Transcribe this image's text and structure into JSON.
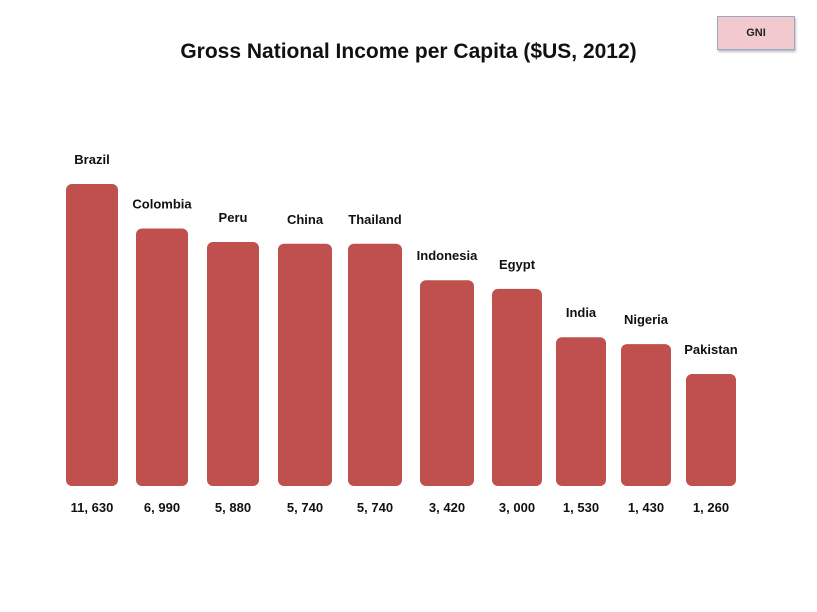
{
  "badge": {
    "label": "GNI"
  },
  "colors": {
    "bar": "#c0504d",
    "badge_bg": "#f2c9cc"
  },
  "chart_data": {
    "type": "bar",
    "title": "Gross National Income per Capita ($US, 2012)",
    "xlabel": "",
    "ylabel": "",
    "grid": false,
    "categories": [
      "Brazil",
      "Colombia",
      "Peru",
      "China",
      "Thailand",
      "Indonesia",
      "Egypt",
      "India",
      "Nigeria",
      "Pakistan"
    ],
    "values": [
      11630,
      6990,
      5880,
      5740,
      5740,
      3420,
      3000,
      1530,
      1430,
      1260
    ],
    "value_labels": [
      "11, 630",
      "6, 990",
      "5, 880",
      "5, 740",
      "5, 740",
      "3, 420",
      "3, 000",
      "1, 530",
      "1, 430",
      "1, 260"
    ]
  }
}
